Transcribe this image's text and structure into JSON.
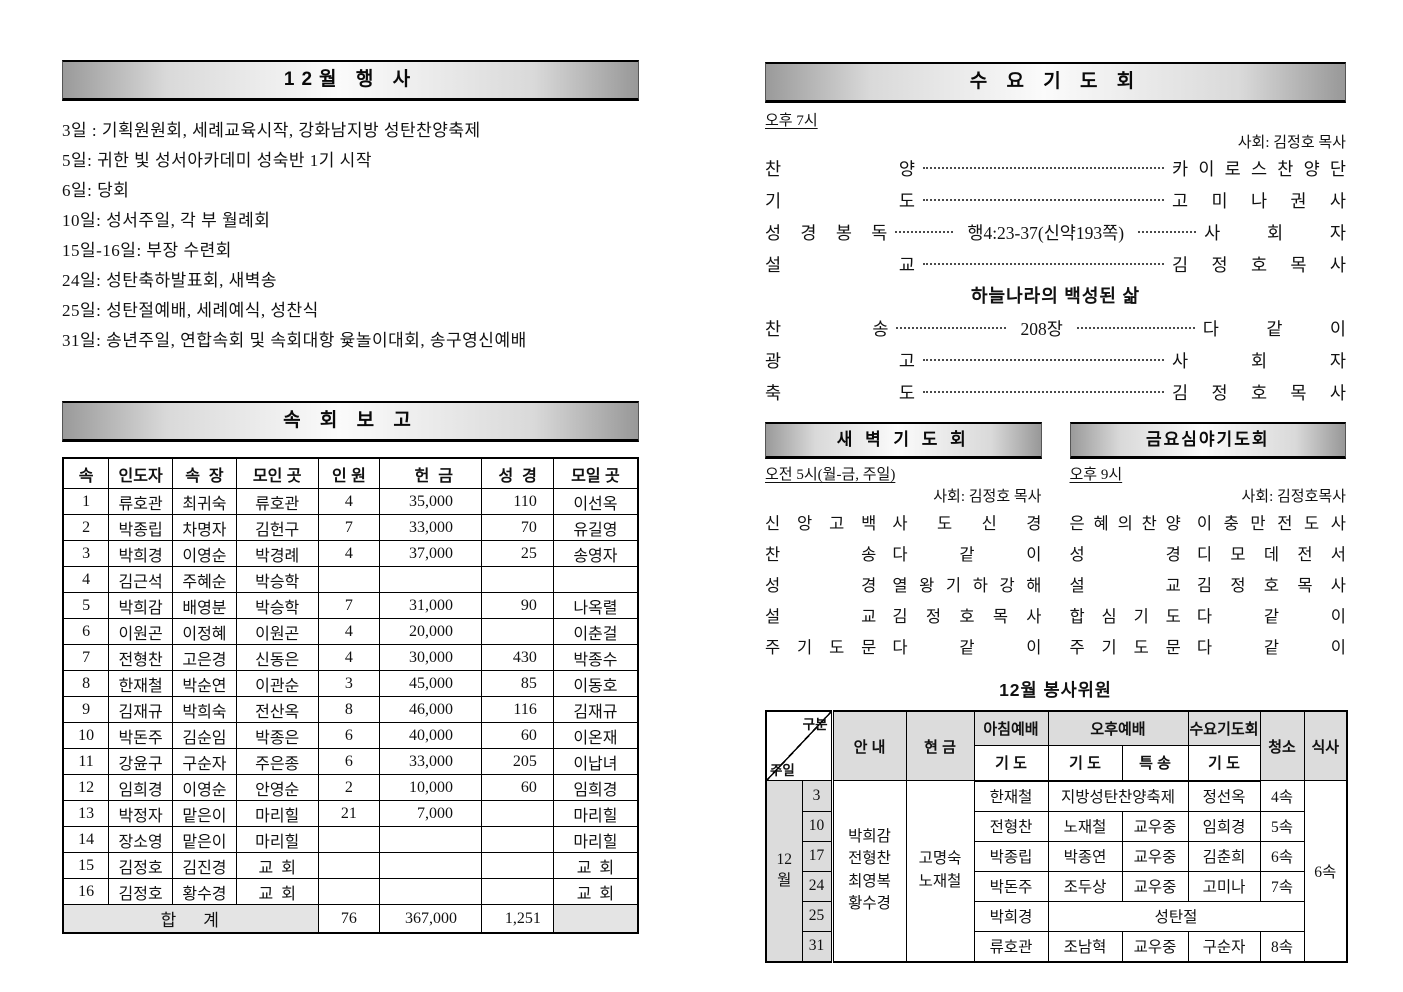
{
  "events": {
    "title": "12월  행 사",
    "items": [
      "3일 : 기획원원회, 세례교육시작, 강화남지방 성탄찬양축제",
      "5일: 귀한 빛 성서아카데미 성숙반 1기 시작",
      "6일: 당회",
      "10일: 성서주일, 각 부 월례회",
      "15일-16일: 부장 수련회",
      "24일: 성탄축하발표회, 새벽송",
      "25일: 성탄절예배, 세례예식, 성찬식",
      "31일: 송년주일, 연합속회 및 속회대항 윷놀이대회, 송구영신예배"
    ]
  },
  "sokhoe": {
    "title": "속 회 보 고",
    "headers": [
      "속",
      "인도자",
      "속  장",
      "모인 곳",
      "인 원",
      "헌  금",
      "성  경",
      "모일 곳"
    ],
    "rows": [
      [
        "1",
        "류호관",
        "최귀숙",
        "류호관",
        "4",
        "35,000",
        "110",
        "이선옥"
      ],
      [
        "2",
        "박종립",
        "차명자",
        "김헌구",
        "7",
        "33,000",
        "70",
        "유길영"
      ],
      [
        "3",
        "박희경",
        "이영순",
        "박경례",
        "4",
        "37,000",
        "25",
        "송영자"
      ],
      [
        "4",
        "김근석",
        "주혜순",
        "박승학",
        "",
        "",
        "",
        ""
      ],
      [
        "5",
        "박희감",
        "배영분",
        "박승학",
        "7",
        "31,000",
        "90",
        "나옥렬"
      ],
      [
        "6",
        "이원곤",
        "이정혜",
        "이원곤",
        "4",
        "20,000",
        "",
        "이춘걸"
      ],
      [
        "7",
        "전형찬",
        "고은경",
        "신동은",
        "4",
        "30,000",
        "430",
        "박종수"
      ],
      [
        "8",
        "한재철",
        "박순연",
        "이관순",
        "3",
        "45,000",
        "85",
        "이동호"
      ],
      [
        "9",
        "김재규",
        "박희숙",
        "전산옥",
        "8",
        "46,000",
        "116",
        "김재규"
      ],
      [
        "10",
        "박돈주",
        "김순임",
        "박종은",
        "6",
        "40,000",
        "60",
        "이온재"
      ],
      [
        "11",
        "강윤구",
        "구순자",
        "주은종",
        "6",
        "33,000",
        "205",
        "이납녀"
      ],
      [
        "12",
        "임희경",
        "이영순",
        "안영순",
        "2",
        "10,000",
        "60",
        "임희경"
      ],
      [
        "13",
        "박정자",
        "맡은이",
        "마리힐",
        "21",
        "7,000",
        "",
        "마리힐"
      ],
      [
        "14",
        "장소영",
        "맡은이",
        "마리힐",
        "",
        "",
        "",
        "마리힐"
      ],
      [
        "15",
        "김정호",
        "김진경",
        "교  회",
        "",
        "",
        "",
        "교  회"
      ],
      [
        "16",
        "김정호",
        "황수경",
        "교  회",
        "",
        "",
        "",
        "교  회"
      ]
    ],
    "total_label": "합    계",
    "total": [
      "76",
      "367,000",
      "1,251",
      ""
    ]
  },
  "wed": {
    "title": "수 요 기 도 회",
    "time": "오후 7시",
    "moderator": "사회: 김정호 목사",
    "rows": [
      {
        "label": "찬양",
        "value": "카이로스찬양단"
      },
      {
        "label": "기도",
        "value": "고미나 권사"
      }
    ],
    "scripture": {
      "label": "성경봉독",
      "center": "행4:23-37(신약193쪽)",
      "value": "사회자"
    },
    "sermon": {
      "label": "설교",
      "value": "김정호 목사"
    },
    "sermon_title": "하늘나라의 백성된 삶",
    "hymn": {
      "label": "찬송",
      "center": "208장",
      "value": "다같이"
    },
    "rows2": [
      {
        "label": "광고",
        "value": "사회자"
      },
      {
        "label": "축도",
        "value": "김정호 목사"
      }
    ]
  },
  "dawn": {
    "title": "새 벽 기 도 회",
    "time": "오전 5시(월-금, 주일)",
    "moderator": "사회: 김정호 목사",
    "rows": [
      {
        "label": "신앙고백",
        "value": "사도신경"
      },
      {
        "label": "찬송",
        "value": "다같이"
      },
      {
        "label": "성경",
        "value": "열왕기하강해"
      },
      {
        "label": "설교",
        "value": "김정호목사"
      },
      {
        "label": "주기도문",
        "value": "다같이"
      }
    ]
  },
  "fri": {
    "title": "금요심야기도회",
    "time": "오후 9시",
    "moderator": "사회: 김정호목사",
    "rows": [
      {
        "label": "은혜의찬양",
        "value": "이충만전도사"
      },
      {
        "label": "성경",
        "value": "디모데전서"
      },
      {
        "label": "설교",
        "value": "김정호목사"
      },
      {
        "label": "합심기도",
        "value": "다같이"
      },
      {
        "label": "주기도문",
        "value": "다같이"
      }
    ]
  },
  "volunteers": {
    "title": "12월 봉사위원",
    "corner": {
      "top": "구분",
      "bottom": "주일"
    },
    "month": [
      "12",
      "월"
    ],
    "headers": {
      "annae": "안 내",
      "hyeongeum": "현 금",
      "morning": "아침예배",
      "afternoon": "오후예배",
      "wednesday": "수요기도회",
      "gido1": "기 도",
      "gido2": "기 도",
      "teuksong": "특 송",
      "gido3": "기 도",
      "cheongso": "청소",
      "siksa": "식사"
    },
    "annae_names": [
      "박희감",
      "전형찬",
      "최영복",
      "황수경"
    ],
    "hyeongeum_names": [
      "고명숙",
      "노재철"
    ],
    "siksa_value": "6속",
    "rows": [
      {
        "date": "3",
        "am": "한재철",
        "pm_span": "지방성탄찬양축제",
        "wed": "정선옥",
        "clean": "4속"
      },
      {
        "date": "10",
        "am": "전형찬",
        "pm1": "노재철",
        "pm2": "교우중",
        "wed": "임희경",
        "clean": "5속"
      },
      {
        "date": "17",
        "am": "박종립",
        "pm1": "박종연",
        "pm2": "교우중",
        "wed": "김춘희",
        "clean": "6속"
      },
      {
        "date": "24",
        "am": "박돈주",
        "pm1": "조두상",
        "pm2": "교우중",
        "wed": "고미나",
        "clean": "7속"
      },
      {
        "date": "25",
        "am": "박희경",
        "full_span": "성탄절"
      },
      {
        "date": "31",
        "am": "류호관",
        "pm1": "조남혁",
        "pm2": "교우중",
        "wed": "구순자",
        "clean": "8속"
      }
    ]
  }
}
